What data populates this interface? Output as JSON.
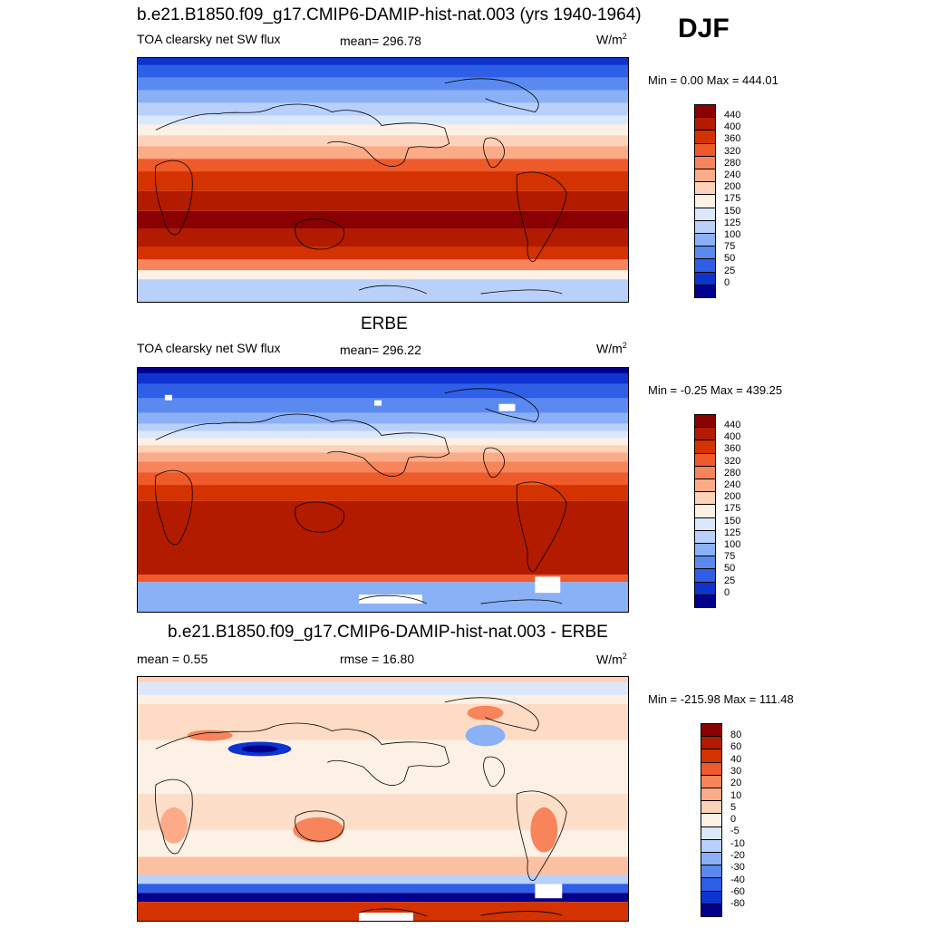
{
  "season": "DJF",
  "panels": [
    {
      "title": "b.e21.B1850.f09_g17.CMIP6-DAMIP-hist-nat.003 (yrs 1940-1964)",
      "left_label": "TOA clearsky net SW flux",
      "center_label": "mean= 296.78",
      "units": "W/m",
      "units_sup": "2",
      "minmax": "Min =   0.00 Max = 444.01",
      "levels": [
        "440",
        "400",
        "360",
        "320",
        "280",
        "240",
        "200",
        "175",
        "150",
        "125",
        "100",
        "75",
        "50",
        "25",
        "0"
      ],
      "colors": [
        "#8b0000",
        "#b31b00",
        "#d43200",
        "#ee5a2a",
        "#f7845a",
        "#fbab88",
        "#fdd2b8",
        "#fdf0e4",
        "#dbe8fb",
        "#b8d0fa",
        "#8ab0f5",
        "#5a8af0",
        "#2f5fe6",
        "#0d34cf",
        "#00008c"
      ]
    },
    {
      "title": "ERBE",
      "left_label": "TOA clearsky net SW flux",
      "center_label": "mean= 296.22",
      "units": "W/m",
      "units_sup": "2",
      "minmax": "Min =  -0.25 Max = 439.25",
      "levels": [
        "440",
        "400",
        "360",
        "320",
        "280",
        "240",
        "200",
        "175",
        "150",
        "125",
        "100",
        "75",
        "50",
        "25",
        "0"
      ],
      "colors": [
        "#8b0000",
        "#b31b00",
        "#d43200",
        "#ee5a2a",
        "#f7845a",
        "#fbab88",
        "#fdd2b8",
        "#fdf0e4",
        "#dbe8fb",
        "#b8d0fa",
        "#8ab0f5",
        "#5a8af0",
        "#2f5fe6",
        "#0d34cf",
        "#00008c"
      ]
    },
    {
      "title": "b.e21.B1850.f09_g17.CMIP6-DAMIP-hist-nat.003 - ERBE",
      "left_label": "mean =   0.55",
      "center_label": "rmse =  16.80",
      "units": "W/m",
      "units_sup": "2",
      "minmax": "Min = -215.98 Max = 111.48",
      "levels": [
        "80",
        "60",
        "40",
        "30",
        "20",
        "10",
        "5",
        "0",
        "-5",
        "-10",
        "-20",
        "-30",
        "-40",
        "-60",
        "-80"
      ],
      "colors": [
        "#8b0000",
        "#b31b00",
        "#d43200",
        "#ee5a2a",
        "#f7845a",
        "#fbab88",
        "#fdd2b8",
        "#fdf0e4",
        "#dbe8fb",
        "#b8d0fa",
        "#8ab0f5",
        "#5a8af0",
        "#2f5fe6",
        "#0d34cf",
        "#00008c"
      ]
    }
  ]
}
